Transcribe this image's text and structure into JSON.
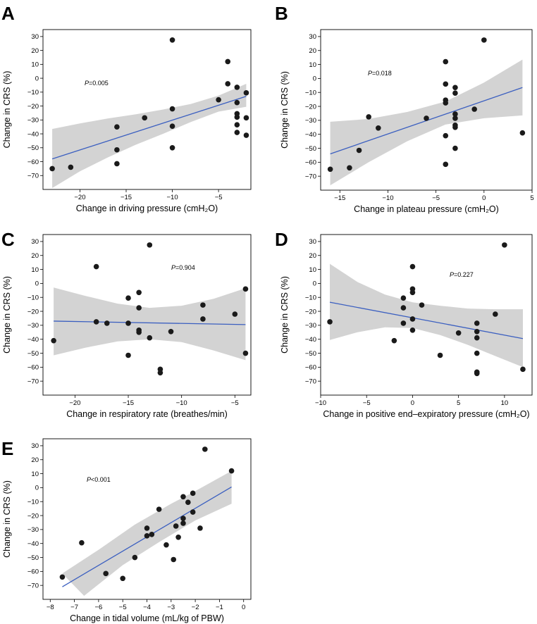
{
  "figure": {
    "title": ""
  },
  "chart_data": [
    {
      "panel": "A",
      "type": "scatter",
      "xlabel": "Change in driving pressure (cmH₂O)",
      "ylabel": "Change in CRS (%)",
      "p_italic": "P",
      "p_value": "=0.005",
      "xlim": [
        -24,
        -1.5
      ],
      "ylim": [
        -80,
        35
      ],
      "xticks": [
        -20,
        -15,
        -10,
        -5
      ],
      "yticks": [
        30,
        20,
        10,
        0,
        -10,
        -20,
        -30,
        -40,
        -50,
        -60,
        -70
      ],
      "points": [
        [
          -23,
          -65
        ],
        [
          -21,
          -64
        ],
        [
          -16,
          -35
        ],
        [
          -16,
          -51.5
        ],
        [
          -16,
          -61.5
        ],
        [
          -13,
          -28.5
        ],
        [
          -10,
          27.5
        ],
        [
          -10,
          -22
        ],
        [
          -10,
          -34.5
        ],
        [
          -10,
          -50
        ],
        [
          -5,
          -15.5
        ],
        [
          -4,
          12
        ],
        [
          -4,
          -4
        ],
        [
          -3,
          -6.5
        ],
        [
          -3,
          -17.5
        ],
        [
          -3,
          -25.5
        ],
        [
          -3,
          -28
        ],
        [
          -3,
          -33.5
        ],
        [
          -3,
          -39
        ],
        [
          -2,
          -10.5
        ],
        [
          -2,
          -28.5
        ],
        [
          -2,
          -41
        ]
      ],
      "fit": [
        [
          -23,
          -58
        ],
        [
          -2,
          -13
        ]
      ],
      "band_upper": [
        [
          -23,
          -36.5
        ],
        [
          -20,
          -32.5
        ],
        [
          -17,
          -29
        ],
        [
          -14,
          -26
        ],
        [
          -11,
          -22.5
        ],
        [
          -8,
          -18.5
        ],
        [
          -5,
          -12.5
        ],
        [
          -2,
          -4
        ]
      ],
      "band_lower": [
        [
          -23,
          -79
        ],
        [
          -20,
          -67
        ],
        [
          -17,
          -57
        ],
        [
          -14,
          -48
        ],
        [
          -11,
          -40
        ],
        [
          -8,
          -31.5
        ],
        [
          -5,
          -24
        ],
        [
          -2,
          -20.5
        ]
      ]
    },
    {
      "panel": "B",
      "type": "scatter",
      "xlabel": "Change in plateau pressure (cmH₂O)",
      "ylabel": "Change in CRS (%)",
      "p_italic": "P",
      "p_value": "=0.018",
      "xlim": [
        -17,
        5
      ],
      "ylim": [
        -80,
        35
      ],
      "xticks": [
        -15,
        -10,
        -5,
        0,
        5
      ],
      "yticks": [
        30,
        20,
        10,
        0,
        -10,
        -20,
        -30,
        -40,
        -50,
        -60,
        -70
      ],
      "points": [
        [
          -16,
          -65
        ],
        [
          -14,
          -64
        ],
        [
          -13,
          -51.5
        ],
        [
          -12,
          -27.5
        ],
        [
          -11,
          -35.5
        ],
        [
          -6,
          -28.5
        ],
        [
          -4,
          12
        ],
        [
          -4,
          -4
        ],
        [
          -4,
          -15.5
        ],
        [
          -4,
          -17.5
        ],
        [
          -4,
          -41
        ],
        [
          -4,
          -61.5
        ],
        [
          -3,
          -6.5
        ],
        [
          -3,
          -10.5
        ],
        [
          -3,
          -25.5
        ],
        [
          -3,
          -28.5
        ],
        [
          -3,
          -33.5
        ],
        [
          -3,
          -35
        ],
        [
          -3,
          -50
        ],
        [
          -1,
          -22
        ],
        [
          0,
          27.5
        ],
        [
          4,
          -39
        ]
      ],
      "fit": [
        [
          -16,
          -54
        ],
        [
          4,
          -6.5
        ]
      ],
      "band_upper": [
        [
          -16,
          -31
        ],
        [
          -12,
          -29
        ],
        [
          -8,
          -24
        ],
        [
          -4,
          -16.5
        ],
        [
          0,
          -3
        ],
        [
          4,
          13.5
        ]
      ],
      "band_lower": [
        [
          -16,
          -76.5
        ],
        [
          -12,
          -60
        ],
        [
          -8,
          -45
        ],
        [
          -4,
          -33
        ],
        [
          0,
          -28.5
        ],
        [
          4,
          -26.5
        ]
      ]
    },
    {
      "panel": "C",
      "type": "scatter",
      "xlabel": "Change in respiratory rate (breathes/min)",
      "ylabel": "Change in CRS (%)",
      "p_italic": "P",
      "p_value": "=0.904",
      "xlim": [
        -23,
        -3.5
      ],
      "ylim": [
        -80,
        35
      ],
      "xticks": [
        -20,
        -15,
        -10,
        -5
      ],
      "yticks": [
        30,
        20,
        10,
        0,
        -10,
        -20,
        -30,
        -40,
        -50,
        -60,
        -70
      ],
      "points": [
        [
          -22,
          -41
        ],
        [
          -18,
          12
        ],
        [
          -18,
          -27.5
        ],
        [
          -17,
          -28.5
        ],
        [
          -15,
          -10.5
        ],
        [
          -15,
          -28.5
        ],
        [
          -15,
          -51.5
        ],
        [
          -14,
          -6.5
        ],
        [
          -14,
          -17.5
        ],
        [
          -14,
          -33.5
        ],
        [
          -14,
          -35
        ],
        [
          -13,
          27.5
        ],
        [
          -13,
          -39
        ],
        [
          -12,
          -61.5
        ],
        [
          -12,
          -64
        ],
        [
          -11,
          -34.5
        ],
        [
          -8,
          -15.5
        ],
        [
          -8,
          -25.5
        ],
        [
          -5,
          -22
        ],
        [
          -4,
          -4
        ],
        [
          -4,
          -50
        ]
      ],
      "fit": [
        [
          -22,
          -27
        ],
        [
          -4,
          -29.5
        ]
      ],
      "band_upper": [
        [
          -22,
          -3
        ],
        [
          -19,
          -9
        ],
        [
          -16,
          -14.5
        ],
        [
          -13,
          -17.5
        ],
        [
          -10,
          -16
        ],
        [
          -7,
          -11
        ],
        [
          -4,
          -3.5
        ]
      ],
      "band_lower": [
        [
          -22,
          -51.5
        ],
        [
          -19,
          -46
        ],
        [
          -16,
          -41.5
        ],
        [
          -13,
          -40
        ],
        [
          -10,
          -42
        ],
        [
          -7,
          -48
        ],
        [
          -4,
          -55
        ]
      ]
    },
    {
      "panel": "D",
      "type": "scatter",
      "xlabel": "Change in positive end–expiratory pressure (cmH₂O)",
      "ylabel": "Change in CRS (%)",
      "p_italic": "P",
      "p_value": "=0.227",
      "xlim": [
        -10,
        13
      ],
      "ylim": [
        -80,
        35
      ],
      "xticks": [
        -10,
        -5,
        0,
        5,
        10
      ],
      "yticks": [
        30,
        20,
        10,
        0,
        -10,
        -20,
        -30,
        -40,
        -50,
        -60,
        -70
      ],
      "points": [
        [
          -9,
          -27.5
        ],
        [
          -2,
          -41
        ],
        [
          -1,
          -10.5
        ],
        [
          -1,
          -17.5
        ],
        [
          -1,
          -28.5
        ],
        [
          0,
          12
        ],
        [
          0,
          -4
        ],
        [
          0,
          -6.5
        ],
        [
          0,
          -25.5
        ],
        [
          0,
          -33.5
        ],
        [
          1,
          -15.5
        ],
        [
          3,
          -51.5
        ],
        [
          5,
          -35.5
        ],
        [
          7,
          -28.5
        ],
        [
          7,
          -34.5
        ],
        [
          7,
          -39
        ],
        [
          7,
          -50
        ],
        [
          7,
          -63.5
        ],
        [
          7,
          -64.5
        ],
        [
          9,
          -22
        ],
        [
          10,
          27.5
        ],
        [
          12,
          -61.5
        ]
      ],
      "fit": [
        [
          -9,
          -13.5
        ],
        [
          12,
          -39.5
        ]
      ],
      "band_upper": [
        [
          -9,
          14
        ],
        [
          -6,
          1
        ],
        [
          -3,
          -8
        ],
        [
          0,
          -13.5
        ],
        [
          3,
          -16
        ],
        [
          6,
          -18
        ],
        [
          9,
          -18.5
        ],
        [
          12,
          -18.5
        ]
      ],
      "band_lower": [
        [
          -9,
          -40.5
        ],
        [
          -6,
          -35
        ],
        [
          -3,
          -31.5
        ],
        [
          0,
          -32
        ],
        [
          3,
          -37
        ],
        [
          6,
          -44
        ],
        [
          9,
          -52
        ],
        [
          12,
          -60
        ]
      ]
    },
    {
      "panel": "E",
      "type": "scatter",
      "xlabel": "Change in tidal volume (mL/kg of PBW)",
      "ylabel": "Change in CRS (%)",
      "p_italic": "P",
      "p_value": "<0.001",
      "xlim": [
        -8.3,
        0.3
      ],
      "ylim": [
        -80,
        35
      ],
      "xticks": [
        -8,
        -7,
        -6,
        -5,
        -4,
        -3,
        -2,
        -1,
        0
      ],
      "yticks": [
        30,
        20,
        10,
        0,
        -10,
        -20,
        -30,
        -40,
        -50,
        -60,
        -70
      ],
      "points": [
        [
          -7.5,
          -64
        ],
        [
          -6.7,
          -39.5
        ],
        [
          -5.7,
          -61.5
        ],
        [
          -5,
          -65
        ],
        [
          -4.5,
          -50
        ],
        [
          -4,
          -29
        ],
        [
          -4,
          -34.5
        ],
        [
          -3.8,
          -33.5
        ],
        [
          -3.5,
          -15.5
        ],
        [
          -3.2,
          -41
        ],
        [
          -2.9,
          -51.5
        ],
        [
          -2.8,
          -27.5
        ],
        [
          -2.7,
          -35.5
        ],
        [
          -2.5,
          -6.5
        ],
        [
          -2.5,
          -22
        ],
        [
          -2.5,
          -25.5
        ],
        [
          -2.3,
          -10.5
        ],
        [
          -2.1,
          -17.5
        ],
        [
          -2.1,
          -4
        ],
        [
          -1.8,
          -29
        ],
        [
          -1.6,
          27.5
        ],
        [
          -0.5,
          12
        ]
      ],
      "fit": [
        [
          -7.5,
          -71
        ],
        [
          -0.5,
          0.5
        ]
      ],
      "band_upper": [
        [
          -7.5,
          -61.5
        ],
        [
          -6,
          -44.5
        ],
        [
          -4.5,
          -26.5
        ],
        [
          -3,
          -11.5
        ],
        [
          -2,
          -2.5
        ],
        [
          -0.5,
          12
        ]
      ],
      "band_lower": [
        [
          -7.5,
          -74
        ],
        [
          -6,
          -64.5
        ],
        [
          -5.5,
          -65.5
        ],
        [
          -6.6,
          -77.5
        ]
      ],
      "band_lower_ordered": [
        [
          -6.6,
          -77.5
        ],
        [
          -5,
          -55.5
        ],
        [
          -3.5,
          -39
        ],
        [
          -2,
          -23.5
        ],
        [
          -0.5,
          -11.5
        ]
      ]
    }
  ]
}
